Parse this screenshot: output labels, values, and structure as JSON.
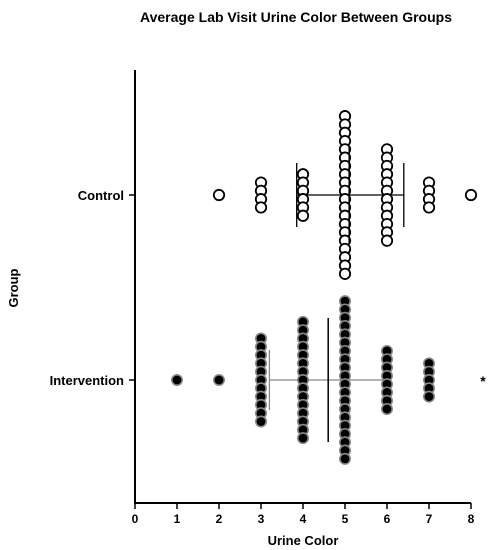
{
  "chart_data": {
    "type": "scatter",
    "title": "Average Lab Visit Urine Color Between Groups",
    "xlabel": "Urine Color",
    "ylabel": "Group",
    "xlim": [
      0,
      8
    ],
    "x_ticks": [
      "0",
      "1",
      "2",
      "3",
      "4",
      "5",
      "6",
      "7",
      "8"
    ],
    "categories": [
      "Control",
      "Intervention"
    ],
    "grid": false,
    "series": [
      {
        "category": "Control",
        "marker": "open-circle",
        "points": [
          {
            "x": 2,
            "count": 1
          },
          {
            "x": 3,
            "count": 4
          },
          {
            "x": 4,
            "count": 6
          },
          {
            "x": 5,
            "count": 20
          },
          {
            "x": 6,
            "count": 12
          },
          {
            "x": 7,
            "count": 4
          },
          {
            "x": 8,
            "count": 1
          }
        ],
        "center_line": 5.1,
        "whisker_low": 3.85,
        "whisker_high": 6.4
      },
      {
        "category": "Intervention",
        "marker": "filled-circle",
        "points": [
          {
            "x": 1,
            "count": 1
          },
          {
            "x": 2,
            "count": 1
          },
          {
            "x": 3,
            "count": 11
          },
          {
            "x": 4,
            "count": 15
          },
          {
            "x": 5,
            "count": 20
          },
          {
            "x": 6,
            "count": 8
          },
          {
            "x": 7,
            "count": 5
          }
        ],
        "center_line": 4.6,
        "whisker_low": 3.2,
        "whisker_high": 6.0
      }
    ],
    "annotations": [
      {
        "text": "*",
        "category": "Intervention"
      }
    ]
  }
}
